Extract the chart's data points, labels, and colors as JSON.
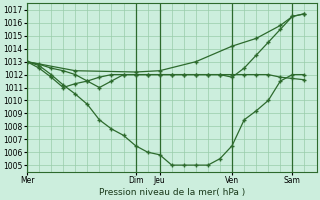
{
  "background_color": "#cceedd",
  "grid_color": "#99ccaa",
  "line_color": "#2d6a2d",
  "title": "Pression niveau de la mer( hPa )",
  "ylim": [
    1004.5,
    1017.5
  ],
  "yticks": [
    1005,
    1006,
    1007,
    1008,
    1009,
    1010,
    1011,
    1012,
    1013,
    1014,
    1015,
    1016,
    1017
  ],
  "xlim": [
    0,
    24
  ],
  "day_labels": [
    "Mer",
    "Dim",
    "Jeu",
    "Ven",
    "Sam"
  ],
  "day_positions": [
    0,
    9,
    11,
    17,
    22
  ],
  "series": [
    {
      "x": [
        0,
        1,
        2,
        3,
        4,
        5,
        6,
        7,
        8,
        9,
        10,
        11,
        12,
        13,
        14,
        15,
        16,
        17,
        18,
        19,
        20,
        21,
        22,
        23
      ],
      "y": [
        1013.0,
        1012.7,
        1012.0,
        1011.2,
        1010.5,
        1009.7,
        1008.5,
        1007.8,
        1007.3,
        1006.5,
        1006.0,
        1005.8,
        1005.0,
        1005.0,
        1005.0,
        1005.0,
        1005.5,
        1006.5,
        1008.5,
        1009.2,
        1010.0,
        1011.5,
        1012.0,
        1012.0
      ]
    },
    {
      "x": [
        0,
        1,
        2,
        3,
        4,
        5,
        6,
        7,
        8,
        9,
        10,
        11,
        12,
        13,
        14,
        15,
        16,
        17,
        18,
        19,
        20,
        21,
        22,
        23
      ],
      "y": [
        1013.0,
        1012.8,
        1012.5,
        1012.3,
        1012.0,
        1011.5,
        1011.0,
        1011.5,
        1012.0,
        1012.0,
        1012.0,
        1012.0,
        1012.0,
        1012.0,
        1012.0,
        1012.0,
        1012.0,
        1012.0,
        1012.0,
        1012.0,
        1012.0,
        1011.8,
        1011.7,
        1011.6
      ]
    },
    {
      "x": [
        0,
        4,
        9,
        11,
        14,
        17,
        19,
        21,
        22,
        23
      ],
      "y": [
        1013.0,
        1012.3,
        1012.2,
        1012.3,
        1013.0,
        1014.2,
        1014.8,
        1015.8,
        1016.5,
        1016.7
      ]
    },
    {
      "x": [
        0,
        1,
        2,
        3,
        4,
        5,
        6,
        7,
        8,
        9,
        10,
        11,
        12,
        13,
        14,
        15,
        16,
        17,
        18,
        19,
        20,
        21,
        22,
        23
      ],
      "y": [
        1013.0,
        1012.5,
        1011.8,
        1011.0,
        1011.3,
        1011.5,
        1011.8,
        1012.0,
        1012.0,
        1012.0,
        1012.0,
        1012.0,
        1012.0,
        1012.0,
        1012.0,
        1012.0,
        1012.0,
        1011.8,
        1012.5,
        1013.5,
        1014.5,
        1015.5,
        1016.5,
        1016.7
      ]
    }
  ]
}
